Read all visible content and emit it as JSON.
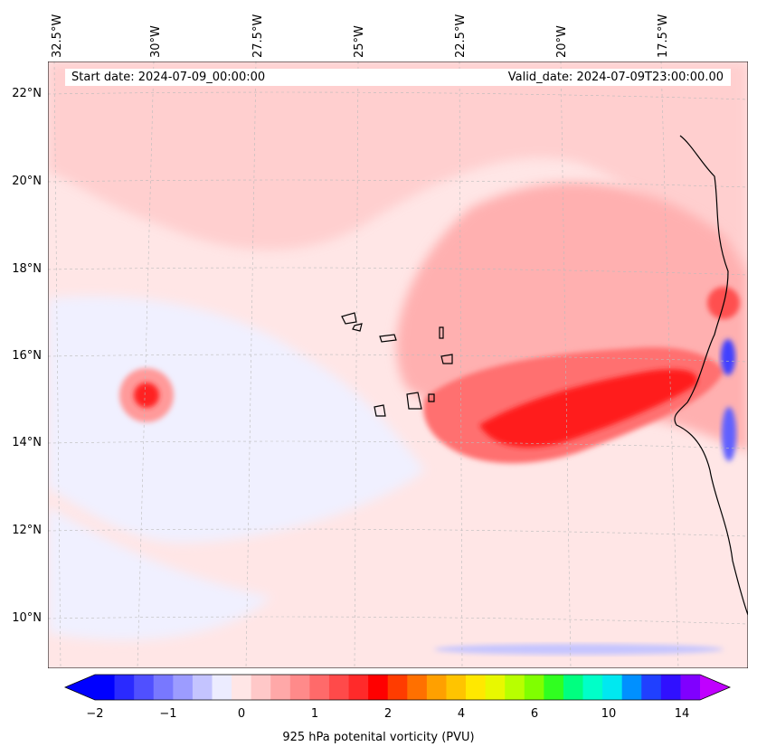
{
  "map": {
    "start_date": "Start date: 2024-07-09_00:00:00",
    "valid_date": "Valid_date: 2024-07-09T23:00:00.00",
    "lon_labels": [
      "32.5°W",
      "30°W",
      "27.5°W",
      "25°W",
      "22.5°W",
      "20°W",
      "17.5°W"
    ],
    "lat_labels": [
      "22°N",
      "20°N",
      "18°N",
      "16°N",
      "14°N",
      "12°N",
      "10°N"
    ]
  },
  "colorbar": {
    "title": "925 hPa potenital vorticity (PVU)",
    "ticks": [
      "−2",
      "−1",
      "0",
      "1",
      "2",
      "4",
      "6",
      "10",
      "14"
    ],
    "colors": [
      "#0000ff",
      "#2a2aff",
      "#5050ff",
      "#7878ff",
      "#9c9cff",
      "#c4c4ff",
      "#ececff",
      "#ffe6e6",
      "#ffc8c8",
      "#ffa8a8",
      "#ff8a8a",
      "#ff6a6a",
      "#ff4a4a",
      "#ff2a2a",
      "#ff0000",
      "#ff3c00",
      "#ff7000",
      "#ffa000",
      "#ffc400",
      "#ffe800",
      "#e8f800",
      "#b8ff00",
      "#80ff00",
      "#30ff20",
      "#00ff80",
      "#00ffc8",
      "#00e8f0",
      "#0090ff",
      "#2040ff",
      "#3010ff",
      "#8000ff"
    ],
    "under_color": "#0000ff",
    "over_color": "#c000ff"
  }
}
